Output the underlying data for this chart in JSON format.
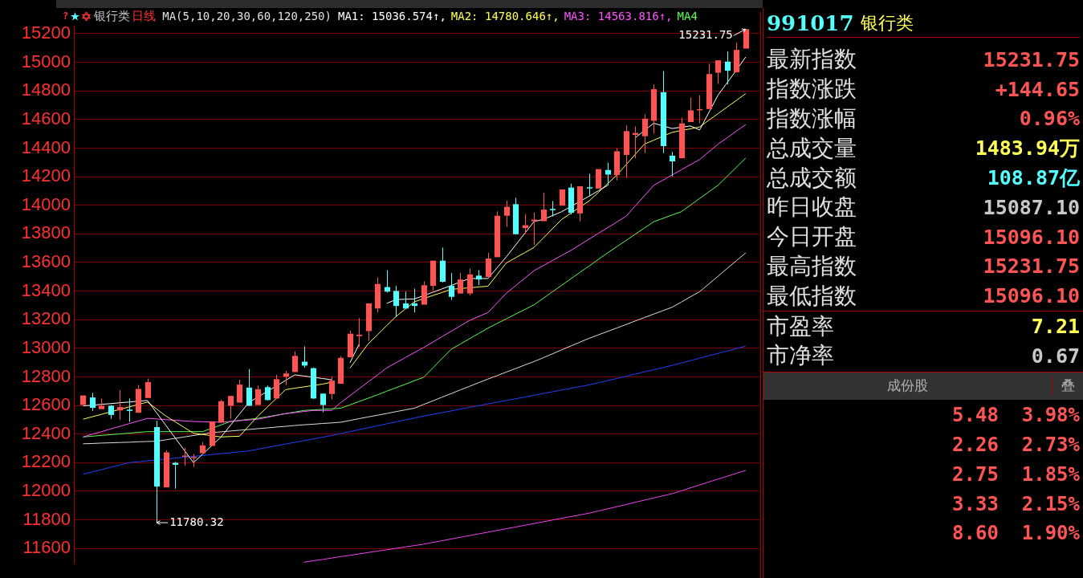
{
  "chart_data": [
    {
      "type": "candlestick",
      "title": "银行类",
      "subtitle": "日线",
      "legend_title": "MA(5,10,20,30,60,120,250)",
      "grid": "y",
      "tick_labels": "y",
      "ylim": [
        11490,
        15255
      ],
      "yticks": [
        11600,
        11800,
        12000,
        12200,
        12400,
        12600,
        12800,
        13000,
        13200,
        13400,
        13600,
        13800,
        14000,
        14200,
        14400,
        14600,
        14800,
        15000,
        15200
      ],
      "annotations": [
        "?",
        "15231.75",
        "11780.32"
      ],
      "categories": [
        null,
        null,
        null,
        null,
        null,
        null,
        null,
        null,
        null,
        null,
        null,
        null,
        null,
        null,
        null,
        null,
        null,
        null,
        null,
        null,
        null,
        null,
        null,
        null,
        null,
        null,
        null,
        null,
        null,
        null,
        null,
        null,
        null,
        null,
        null,
        null,
        null,
        null,
        null,
        null,
        null,
        null,
        null,
        null,
        null,
        null,
        null,
        null,
        null,
        null,
        null,
        null,
        null,
        null,
        null,
        null,
        null,
        null,
        null,
        null,
        null,
        null,
        null,
        null,
        null,
        null,
        null,
        null,
        null,
        null,
        null,
        null,
        null
      ],
      "ohlc": [
        [
          12603,
          12670,
          12603,
          12670
        ],
        [
          12656,
          12688,
          12562,
          12583
        ],
        [
          12574,
          12649,
          12574,
          12598
        ],
        [
          12598,
          12603,
          12507,
          12534
        ],
        [
          12565,
          12707,
          12498,
          12589
        ],
        [
          12571,
          12649,
          12485,
          12562
        ],
        [
          12549,
          12743,
          12549,
          12716
        ],
        [
          12652,
          12788,
          12652,
          12764
        ],
        [
          12449,
          12493,
          11780.32,
          12033
        ],
        [
          12027,
          12286,
          12027,
          12272
        ],
        [
          12199,
          12205,
          12018,
          12185
        ],
        [
          12243,
          12304,
          12180,
          12250
        ],
        [
          12236,
          12260,
          12170,
          12240
        ],
        [
          12266,
          12344,
          12266,
          12321
        ],
        [
          12317,
          12489,
          12317,
          12489
        ],
        [
          12480,
          12640,
          12480,
          12630
        ],
        [
          12598,
          12667,
          12507,
          12667
        ],
        [
          12620,
          12779,
          12620,
          12746
        ],
        [
          12725,
          12855,
          12595,
          12598
        ],
        [
          12603,
          12739,
          12603,
          12714
        ],
        [
          12728,
          12739,
          12635,
          12638
        ],
        [
          12649,
          12815,
          12645,
          12784
        ],
        [
          12801,
          12842,
          12743,
          12824
        ],
        [
          12834,
          12978,
          12830,
          12947
        ],
        [
          12906,
          13014,
          12864,
          12879
        ],
        [
          12861,
          12865,
          12645,
          12649
        ],
        [
          12683,
          12685,
          12553,
          12603
        ],
        [
          12680,
          12801,
          12643,
          12774
        ],
        [
          12752,
          12945,
          12752,
          12933
        ],
        [
          12937,
          13124,
          12937,
          13102
        ],
        [
          13085,
          13211,
          13010,
          13095
        ],
        [
          13120,
          13314,
          13052,
          13314
        ],
        [
          13278,
          13495,
          13251,
          13450
        ],
        [
          13428,
          13546,
          13390,
          13396
        ],
        [
          13401,
          13436,
          13220,
          13296
        ],
        [
          13314,
          13396,
          13274,
          13278
        ],
        [
          13314,
          13418,
          13251,
          13296
        ],
        [
          13305,
          13468,
          13305,
          13441
        ],
        [
          13436,
          13613,
          13405,
          13613
        ],
        [
          13613,
          13704,
          13460,
          13465
        ],
        [
          13437,
          13526,
          13338,
          13360
        ],
        [
          13383,
          13528,
          13383,
          13481
        ],
        [
          13383,
          13559,
          13369,
          13517
        ],
        [
          13508,
          13546,
          13441,
          13481
        ],
        [
          13499,
          13668,
          13499,
          13628
        ],
        [
          13637,
          13957,
          13637,
          13927
        ],
        [
          13927,
          14033,
          13849,
          13990
        ],
        [
          14008,
          14052,
          13795,
          13798
        ],
        [
          13840,
          13939,
          13803,
          13861
        ],
        [
          13889,
          13948,
          13722,
          13900
        ],
        [
          13889,
          14088,
          13889,
          13970
        ],
        [
          13975,
          14030,
          13921,
          13966
        ],
        [
          13997,
          14111,
          13997,
          14111
        ],
        [
          14124,
          14151,
          13936,
          13948
        ],
        [
          13943,
          14133,
          13889,
          14133
        ],
        [
          14126,
          14220,
          14066,
          14120
        ],
        [
          14117,
          14253,
          14117,
          14253
        ],
        [
          14247,
          14298,
          14139,
          14215
        ],
        [
          14211,
          14398,
          14175,
          14378
        ],
        [
          14352,
          14559,
          14193,
          14519
        ],
        [
          14492,
          14552,
          14329,
          14506
        ],
        [
          14483,
          14635,
          14365,
          14606
        ],
        [
          14591,
          14845,
          14501,
          14812
        ],
        [
          14791,
          14939,
          14365,
          14414
        ],
        [
          14347,
          14374,
          14202,
          14307
        ],
        [
          14329,
          14613,
          14329,
          14573
        ],
        [
          14582,
          14754,
          14582,
          14664
        ],
        [
          14667,
          14769,
          14573,
          14673
        ],
        [
          14673,
          14990,
          14673,
          14918
        ],
        [
          14927,
          15014,
          14849,
          15014
        ],
        [
          15005,
          15077,
          14845,
          14941
        ],
        [
          14930,
          15139,
          14930,
          15087.1
        ],
        [
          15096.1,
          15231.75,
          15096.1,
          15231.75
        ]
      ],
      "colors": [
        "#ff5454",
        "#54ffff",
        "#ff5454",
        "#54ffff",
        "#ff5454",
        "#54ffff",
        "#ff5454",
        "#ff5454",
        "#54ffff",
        "#ff5454",
        "#54ffff",
        "#ff5454",
        "#ff5454",
        "#ff5454",
        "#ff5454",
        "#ff5454",
        "#ff5454",
        "#ff5454",
        "#54ffff",
        "#ff5454",
        "#54ffff",
        "#ff5454",
        "#ff5454",
        "#ff5454",
        "#54ffff",
        "#54ffff",
        "#54ffff",
        "#ff5454",
        "#ff5454",
        "#ff5454",
        "#ff5454",
        "#ff5454",
        "#ff5454",
        "#54ffff",
        "#54ffff",
        "#54ffff",
        "#54ffff",
        "#ff5454",
        "#ff5454",
        "#54ffff",
        "#54ffff",
        "#ff5454",
        "#ff5454",
        "#54ffff",
        "#ff5454",
        "#ff5454",
        "#ff5454",
        "#54ffff",
        "#ff5454",
        "#ff5454",
        "#ff5454",
        "#54ffff",
        "#ff5454",
        "#54ffff",
        "#ff5454",
        "#54ffff",
        "#ff5454",
        "#54ffff",
        "#ff5454",
        "#ff5454",
        "#ff5454",
        "#ff5454",
        "#ff5454",
        "#54ffff",
        "#54ffff",
        "#ff5454",
        "#ff5454",
        "#ff5454",
        "#ff5454",
        "#ff5454",
        "#54ffff",
        "#ff5454",
        "#ff5454"
      ],
      "series": [
        {
          "type": "line",
          "name": "MA1: 15036.574↑,",
          "color": "#ffffff",
          "values": [
            12597,
            12602,
            12608,
            12613,
            12619,
            12624,
            12630,
            12635,
            12548,
            12461,
            12374,
            12287,
            12200,
            12260,
            12320,
            12380,
            12460,
            12540,
            12620,
            12659,
            12698,
            12736,
            12775,
            12814,
            12806,
            12797,
            12789,
            12780,
            null,
            12899,
            13029,
            null,
            null,
            13314,
            13341,
            13343,
            13345,
            13368,
            13392,
            13415,
            13439,
            13464,
            13488,
            13488,
            13488,
            13564,
            13640,
            13722,
            13804,
            13886,
            13901,
            13928,
            13955,
            13991,
            14028,
            14064,
            14102,
            14139,
            null,
            null,
            14472,
            14523,
            14574,
            14556,
            14537,
            14546,
            14555,
            14527,
            14649,
            14771,
            14858,
            14945,
            15037
          ]
        },
        {
          "type": "line",
          "name": "MA2: 14780.646↑,",
          "color": "#ffff54",
          "values": [
            12504,
            12521,
            12538,
            12555,
            12573,
            12590,
            12607,
            12624,
            12575,
            12526,
            12486,
            12446,
            12406,
            12397,
            12389,
            12380,
            12383,
            12385,
            12456,
            12526,
            12588,
            12649,
            12711,
            12721,
            12730,
            12740,
            12749,
            12763,
            null,
            12861,
            12947,
            13032,
            13095,
            13159,
            13222,
            13274,
            13325,
            13347,
            13369,
            13390,
            13412,
            13418,
            13423,
            13429,
            13434,
            13516,
            13597,
            13633,
            13669,
            13705,
            13770,
            13836,
            13901,
            13944,
            13988,
            14031,
            14091,
            14151,
            14211,
            14283,
            14356,
            14428,
            14455,
            14483,
            14510,
            14523,
            14535,
            14548,
            14595,
            14641,
            14688,
            14734,
            14781
          ]
        },
        {
          "type": "line",
          "name": "MA3: 14563.816↑,",
          "color": "#ff54ff",
          "values": [
            12380,
            12399,
            12417,
            12436,
            12454,
            12473,
            12491,
            12510,
            12506,
            12501,
            12497,
            12492,
            12488,
            12486,
            12485,
            12483,
            12488,
            12494,
            12499,
            12504,
            12517,
            12530,
            12543,
            12550,
            12558,
            12565,
            12565,
            12565,
            12620,
            12669,
            12717,
            12766,
            12814,
            12863,
            12899,
            12934,
            12970,
            13005,
            13043,
            13081,
            13119,
            13157,
            13195,
            13223,
            13250,
            13318,
            13385,
            13438,
            13490,
            13543,
            13578,
            13614,
            13649,
            13684,
            13724,
            13764,
            13804,
            13843,
            13883,
            13923,
            13995,
            14067,
            14139,
            14175,
            14212,
            14248,
            14284,
            14320,
            14374,
            14428,
            14473,
            14519,
            14564
          ]
        },
        {
          "type": "line",
          "name": "MA4",
          "color": "#54ff54",
          "values": [
            12380,
            12385,
            12391,
            12396,
            12401,
            12406,
            12412,
            12417,
            12417,
            12417,
            12417,
            12417,
            12417,
            12417,
            12441,
            12464,
            12488,
            12495,
            12503,
            12510,
            12521,
            12532,
            12543,
            12554,
            12565,
            12569,
            12573,
            12577,
            12581,
            12604,
            12628,
            12651,
            12675,
            12700,
            12724,
            12748,
            12773,
            12797,
            12862,
            12928,
            12993,
            13030,
            13067,
            13104,
            13141,
            13174,
            13206,
            13239,
            13271,
            13304,
            13349,
            13395,
            13440,
            13486,
            13531,
            13576,
            13622,
            13667,
            13711,
            13754,
            13798,
            13841,
            13885,
            13908,
            13932,
            13955,
            14001,
            14048,
            14094,
            14140,
            14203,
            14267,
            14330
          ]
        },
        {
          "type": "line",
          "color": "#dcdcdc",
          "values": [
            12332,
            12334,
            12337,
            12339,
            12341,
            12343,
            12346,
            12348,
            12350,
            12360,
            12370,
            12380,
            12390,
            12400,
            12410,
            12416,
            12421,
            12427,
            12432,
            12438,
            12443,
            12449,
            12454,
            12460,
            12465,
            12469,
            12474,
            12478,
            12483,
            12495,
            12508,
            12520,
            12532,
            12544,
            12557,
            12569,
            12581,
            12607,
            12632,
            12658,
            12683,
            12709,
            12734,
            12760,
            12785,
            12809,
            12834,
            12858,
            12883,
            12907,
            12934,
            12961,
            12989,
            13016,
            13043,
            13070,
            13094,
            13118,
            13142,
            13166,
            13191,
            13215,
            13239,
            13263,
            13287,
            13323,
            13360,
            13396,
            13450,
            13504,
            13559,
            13613,
            13667
          ]
        },
        {
          "type": "line",
          "color": "#2040ff",
          "values": [
            12119,
            12135,
            12151,
            12168,
            12184,
            12200,
            12206,
            12213,
            12219,
            12225,
            12232,
            12238,
            12244,
            12250,
            12257,
            12263,
            12269,
            12276,
            12282,
            12294,
            12306,
            12318,
            12330,
            12342,
            12354,
            12366,
            12378,
            12390,
            12404,
            12417,
            12431,
            12444,
            12458,
            12472,
            12485,
            12499,
            12512,
            12526,
            12538,
            12550,
            12562,
            12575,
            12587,
            12599,
            12611,
            12623,
            12635,
            12647,
            12659,
            12671,
            12684,
            12696,
            12708,
            12720,
            12732,
            12744,
            12759,
            12774,
            12789,
            12804,
            12820,
            12835,
            12850,
            12865,
            12880,
            12897,
            12914,
            12931,
            12948,
            12964,
            12981,
            12998,
            13015
          ]
        },
        {
          "type": "line",
          "color": "#ee44ee",
          "values": [
            null,
            null,
            null,
            null,
            null,
            null,
            null,
            null,
            null,
            null,
            null,
            null,
            null,
            null,
            null,
            null,
            null,
            null,
            null,
            null,
            null,
            null,
            null,
            null,
            11504,
            11514,
            11523,
            11533,
            11543,
            11552,
            11562,
            11572,
            11581,
            11591,
            11601,
            11611,
            11620,
            11630,
            11642,
            11654,
            11666,
            11678,
            11690,
            11702,
            11714,
            11726,
            11738,
            11750,
            11762,
            11774,
            11786,
            11799,
            11811,
            11823,
            11835,
            11847,
            11862,
            11877,
            11892,
            11907,
            11923,
            11938,
            11953,
            11968,
            11983,
            12003,
            12024,
            12044,
            12065,
            12085,
            12105,
            12126,
            12146
          ]
        }
      ]
    },
    {
      "type": "other",
      "title": "991017",
      "subtitle": "银行类",
      "categories": [
        "最新指数",
        "指数涨跌",
        "指数涨幅",
        "总成交量",
        "总成交额",
        "昨日收盘",
        "今日开盘",
        "最高指数",
        "最低指数",
        "市盈率",
        "市净率",
        null,
        null,
        null,
        null,
        null
      ],
      "value_labels": [
        "15231.75",
        "+144.65",
        "0.96%",
        "1483.94万",
        "108.87亿",
        "15087.10",
        "15096.10",
        "15231.75",
        "15096.10",
        "7.21",
        "0.67",
        "5.48  3.98%",
        "2.26  2.73%",
        "2.75  1.85%",
        "3.33  2.15%",
        "8.60  1.90%"
      ],
      "colors": [
        "#ff5454",
        "#ff5454",
        "#ff5454",
        "#ffff54",
        "#54ffff",
        "#c8c8c8",
        "#ff5454",
        "#ff5454",
        "#ff5454",
        "#ffff54",
        "#c8c8c8",
        "#ff5454",
        "#ff5454",
        "#ff5454",
        "#ff5454",
        "#ff5454"
      ],
      "annotations": [
        "成份股",
        "叠"
      ]
    }
  ]
}
